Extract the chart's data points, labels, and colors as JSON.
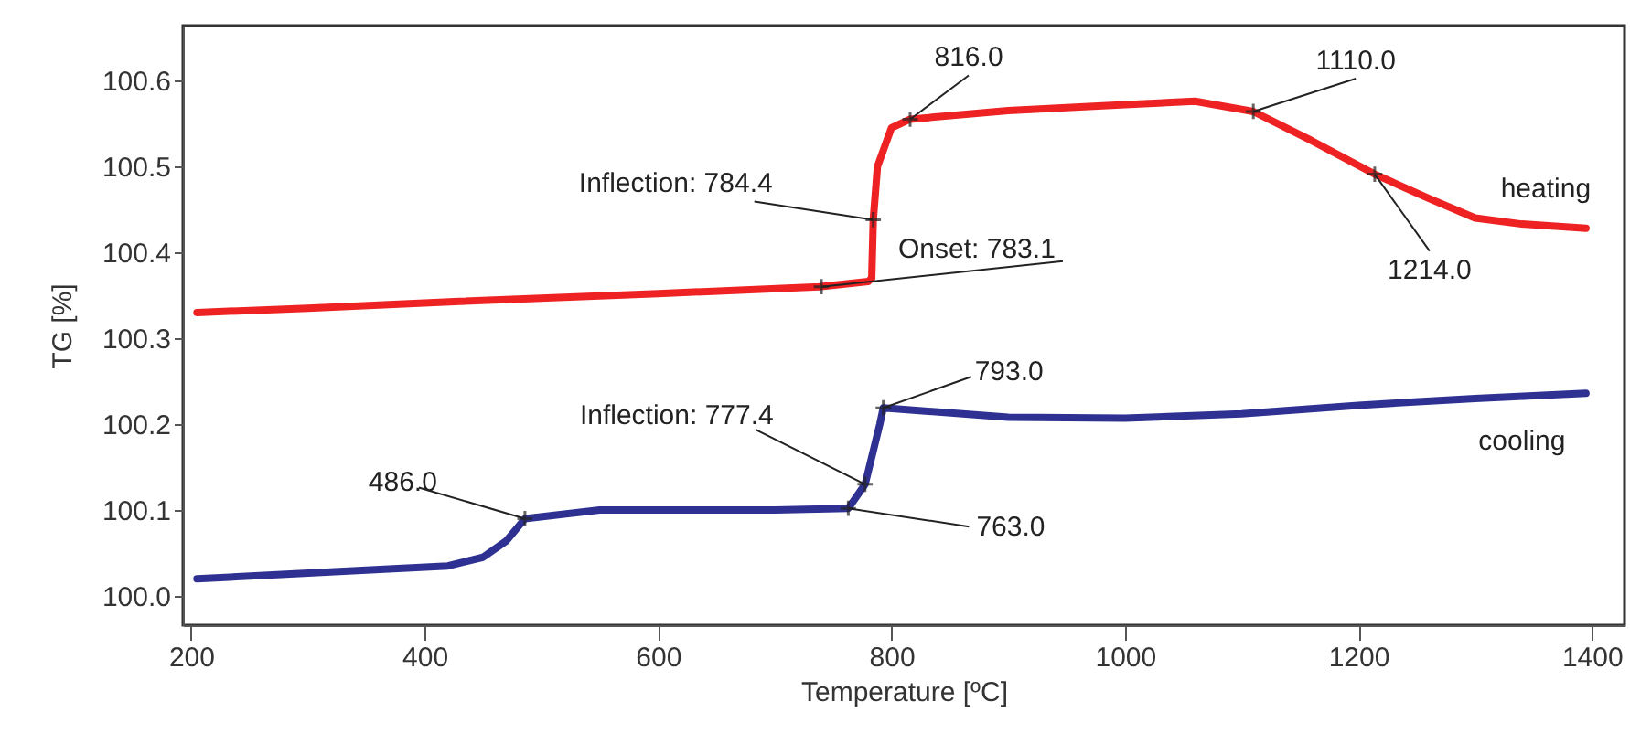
{
  "chart_data": {
    "type": "line",
    "xlabel": "Temperature [ºC]",
    "ylabel": "TG [%]",
    "xlim": [
      193,
      1428
    ],
    "ylim": [
      99.966,
      100.664
    ],
    "xticks": [
      200,
      400,
      600,
      800,
      1000,
      1200,
      1400
    ],
    "yticks": [
      {
        "value": 100.0,
        "label": "100.0"
      },
      100.1,
      100.2,
      100.3,
      100.4,
      100.5,
      100.6
    ],
    "grid": false,
    "line_style": "solid",
    "series": [
      {
        "name": "heating",
        "color": "#ee2222",
        "x": [
          205,
          300,
          430,
          600,
          738,
          780,
          783.1,
          784.4,
          788,
          800,
          816,
          900,
          1000,
          1060,
          1110,
          1160,
          1214,
          1260,
          1300,
          1340,
          1395
        ],
        "values": [
          100.33,
          100.335,
          100.343,
          100.352,
          100.36,
          100.366,
          100.37,
          100.438,
          100.5,
          100.545,
          100.555,
          100.565,
          100.572,
          100.576,
          100.564,
          100.53,
          100.491,
          100.463,
          100.44,
          100.433,
          100.428
        ]
      },
      {
        "name": "cooling",
        "color": "#2e3192",
        "x": [
          205,
          350,
          420,
          450,
          470,
          486,
          550,
          700,
          763,
          777.4,
          790,
          793,
          900,
          1000,
          1100,
          1200,
          1300,
          1395
        ],
        "values": [
          100.02,
          100.03,
          100.035,
          100.045,
          100.064,
          100.09,
          100.1,
          100.1,
          100.102,
          100.13,
          100.2,
          100.219,
          100.208,
          100.207,
          100.212,
          100.222,
          100.23,
          100.236
        ]
      }
    ],
    "annotations": [
      {
        "text": "Inflection: 784.4",
        "x": 784.4,
        "y": 100.438
      },
      {
        "text": "Onset: 783.1",
        "x": 740,
        "y": 100.36
      },
      {
        "text": "816.0",
        "x": 816,
        "y": 100.555
      },
      {
        "text": "1110.0",
        "x": 1110,
        "y": 100.564
      },
      {
        "text": "1214.0",
        "x": 1214,
        "y": 100.491
      },
      {
        "text": "486.0",
        "x": 486,
        "y": 100.09
      },
      {
        "text": "Inflection: 777.4",
        "x": 777.4,
        "y": 100.13
      },
      {
        "text": "763.0",
        "x": 763,
        "y": 100.102
      },
      {
        "text": "793.0",
        "x": 793,
        "y": 100.219
      }
    ]
  }
}
